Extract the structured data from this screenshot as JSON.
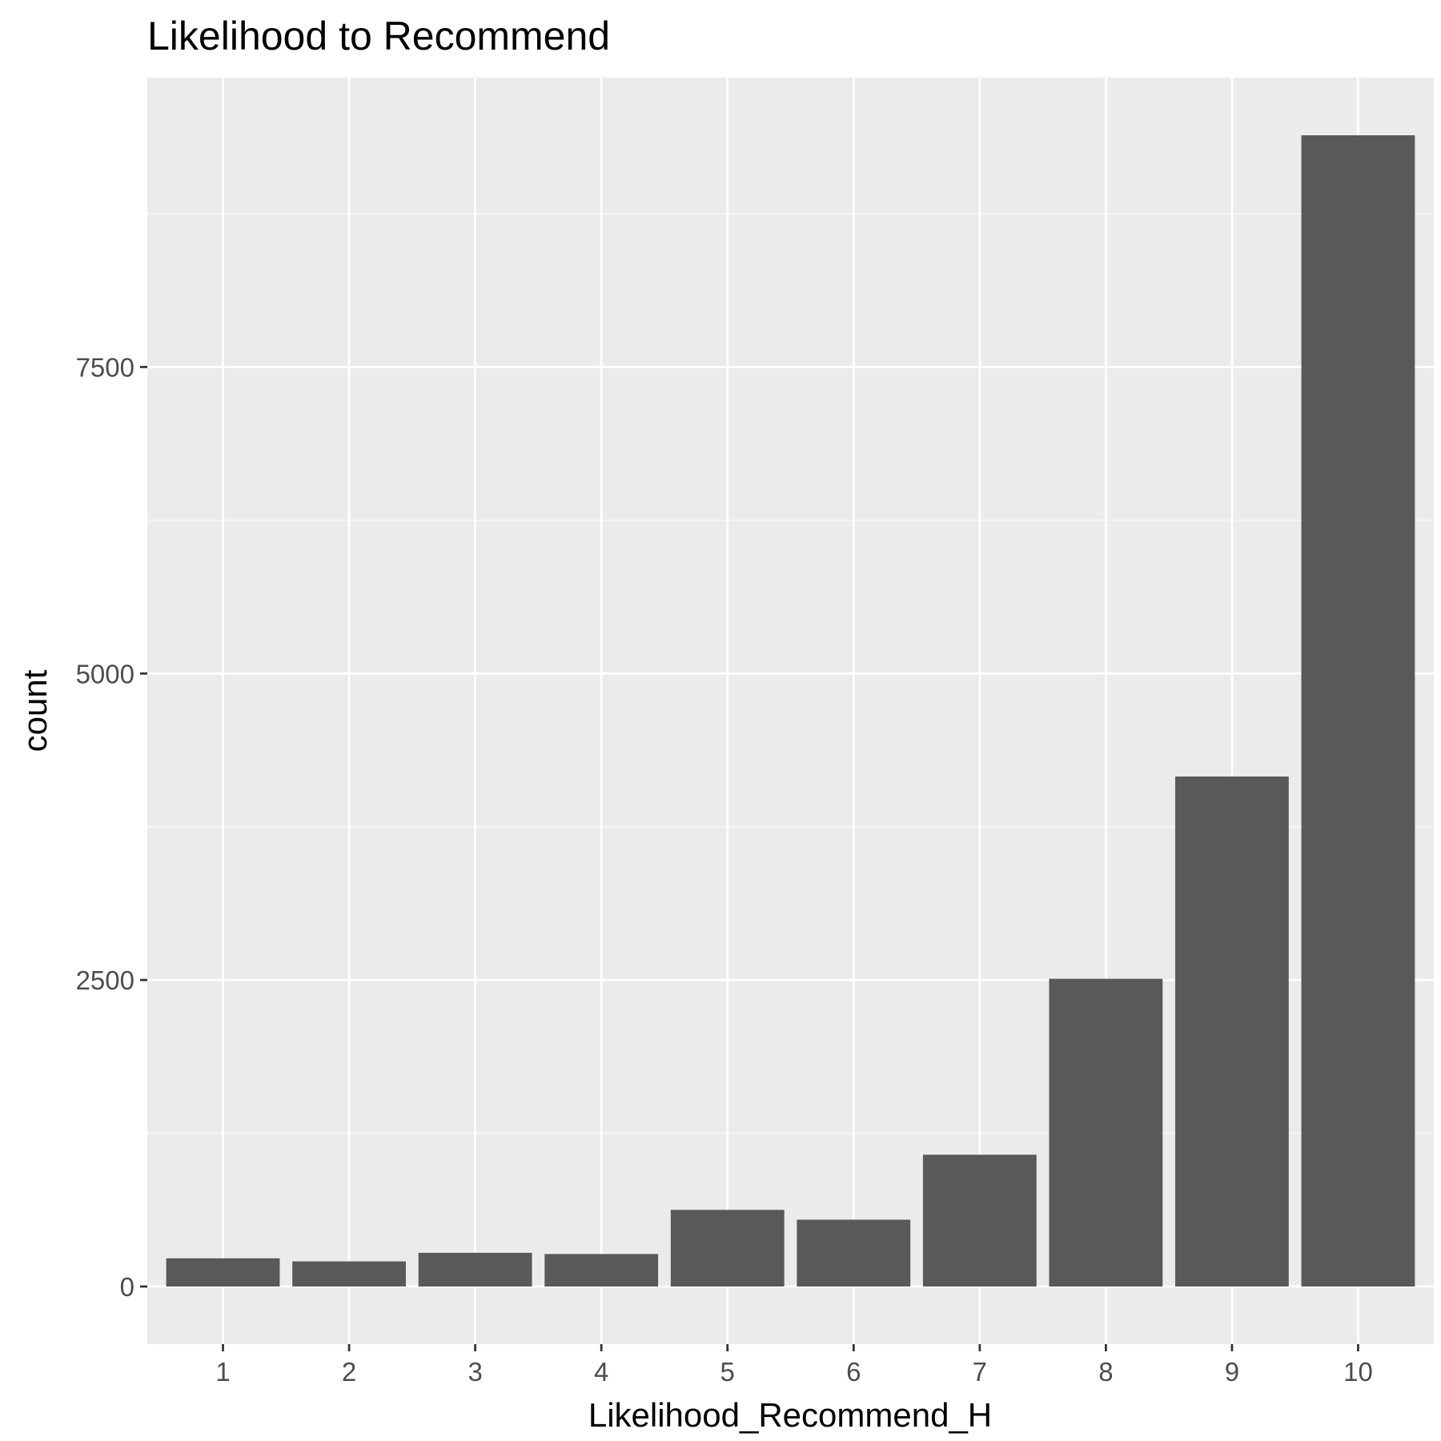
{
  "chart_data": {
    "type": "bar",
    "title": "Likelihood to Recommend",
    "xlabel": "Likelihood_Recommend_H",
    "ylabel": "count",
    "categories": [
      "1",
      "2",
      "3",
      "4",
      "5",
      "6",
      "7",
      "8",
      "9",
      "10"
    ],
    "values": [
      230,
      205,
      275,
      265,
      625,
      545,
      1075,
      2510,
      4160,
      9390
    ],
    "ylim": [
      -470,
      9860
    ],
    "yticks": [
      0,
      2500,
      5000,
      7500
    ],
    "yticks_labels": [
      "0",
      "2500",
      "5000",
      "7500"
    ],
    "grid": true,
    "legend": "none",
    "colors": {
      "bar": "#595959",
      "panel_bg": "#ebebeb",
      "grid_major": "#ffffff",
      "grid_minor": "#f5f5f5",
      "tick": "#333333"
    }
  }
}
